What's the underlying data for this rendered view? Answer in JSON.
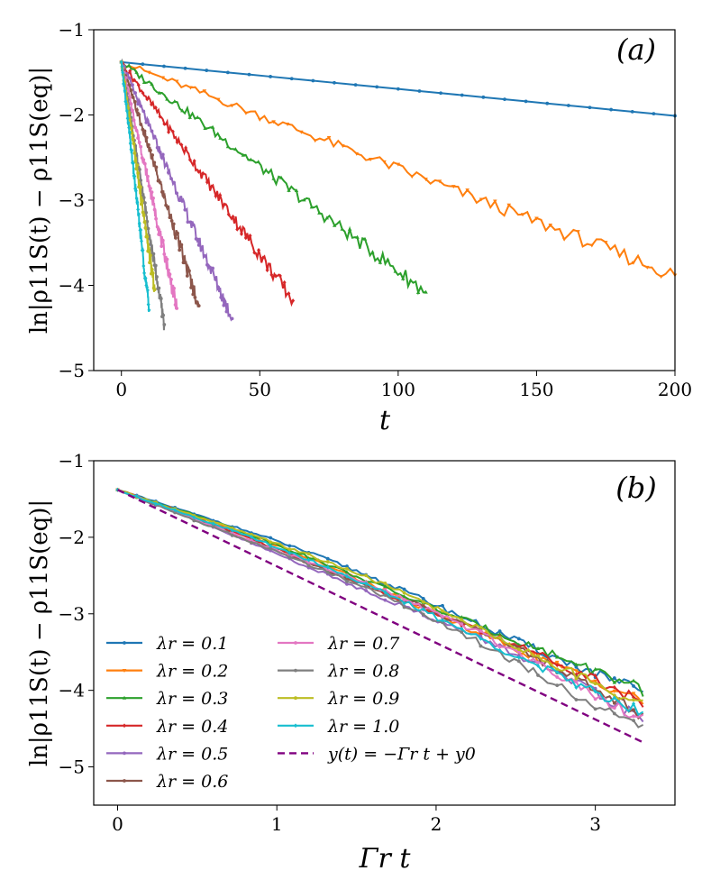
{
  "colors": [
    "#1f77b4",
    "#ff7f0e",
    "#2ca02c",
    "#d62728",
    "#9467bd",
    "#8c564b",
    "#e377c2",
    "#7f7f7f",
    "#bcbd22",
    "#17becf"
  ],
  "chart_data": [
    {
      "type": "line",
      "panel_label": "(a)",
      "xlabel": "t",
      "ylabel": "ln|ρ11S(t) − ρ11S(eq)|",
      "xlim": [
        -10,
        200
      ],
      "ylim": [
        -5,
        -1
      ],
      "xticks": [
        0,
        50,
        100,
        150,
        200
      ],
      "yticks": [
        -5,
        -4,
        -3,
        -2,
        -1
      ],
      "xtick_labels": [
        "0",
        "50",
        "100",
        "150",
        "200"
      ],
      "ytick_labels": [
        "−5",
        "−4",
        "−3",
        "−2",
        "−1"
      ],
      "y0": -1.38,
      "series": [
        {
          "name": "λr = 0.1",
          "t_end": 200,
          "y_end": -2.01
        },
        {
          "name": "λr = 0.2",
          "t_end": 200,
          "y_end": -3.88
        },
        {
          "name": "λr = 0.3",
          "t_end": 110,
          "y_end": -4.08
        },
        {
          "name": "λr = 0.4",
          "t_end": 62,
          "y_end": -4.18
        },
        {
          "name": "λr = 0.5",
          "t_end": 40,
          "y_end": -4.39
        },
        {
          "name": "λr = 0.6",
          "t_end": 28,
          "y_end": -4.24
        },
        {
          "name": "λr = 0.7",
          "t_end": 20,
          "y_end": -4.27
        },
        {
          "name": "λr = 0.8",
          "t_end": 15.5,
          "y_end": -4.46
        },
        {
          "name": "λr = 0.9",
          "t_end": 12,
          "y_end": -4.05
        },
        {
          "name": "λr = 1.0",
          "t_end": 10,
          "y_end": -4.29
        }
      ]
    },
    {
      "type": "line",
      "panel_label": "(b)",
      "xlabel": "Γr t",
      "ylabel": "ln|ρ11S(t) − ρ11S(eq)|",
      "xlim": [
        -0.15,
        3.5
      ],
      "ylim": [
        -5.5,
        -1
      ],
      "xticks": [
        0,
        1,
        2,
        3
      ],
      "yticks": [
        -5,
        -4,
        -3,
        -2,
        -1
      ],
      "xtick_labels": [
        "0",
        "1",
        "2",
        "3"
      ],
      "ytick_labels": [
        "−5",
        "−4",
        "−3",
        "−2",
        "−1"
      ],
      "x_end": 3.3,
      "y0": -1.38,
      "slope": -1.0,
      "series": [
        {
          "name": "λr = 0.1",
          "y_end": -4.02
        },
        {
          "name": "λr = 0.2",
          "y_end": -4.18
        },
        {
          "name": "λr = 0.3",
          "y_end": -4.08
        },
        {
          "name": "λr = 0.4",
          "y_end": -4.22
        },
        {
          "name": "λr = 0.5",
          "y_end": -4.41
        },
        {
          "name": "λr = 0.6",
          "y_end": -4.3
        },
        {
          "name": "λr = 0.7",
          "y_end": -4.32
        },
        {
          "name": "λr = 0.8",
          "y_end": -4.45
        },
        {
          "name": "λr = 0.9",
          "y_end": -4.13
        },
        {
          "name": "λr = 1.0",
          "y_end": -4.28
        }
      ],
      "fit": {
        "name": "y(t) = −Γr t + y0",
        "color": "#800080",
        "style": "dashed"
      }
    }
  ]
}
